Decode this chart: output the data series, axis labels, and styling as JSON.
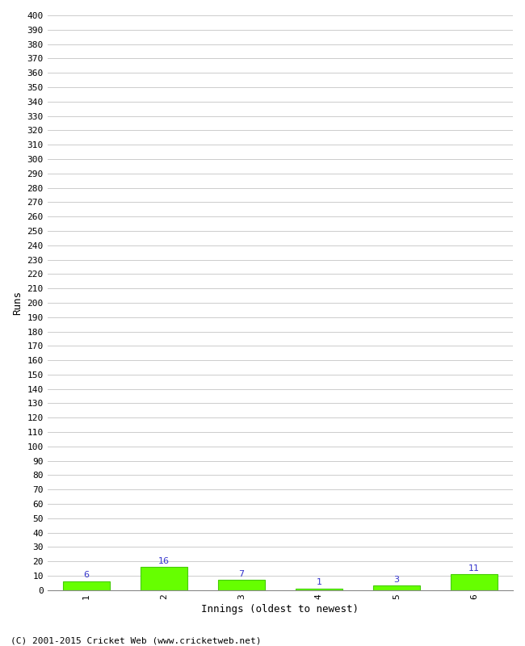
{
  "categories": [
    "1",
    "2",
    "3",
    "4",
    "5",
    "6"
  ],
  "values": [
    6,
    16,
    7,
    1,
    3,
    11
  ],
  "bar_color": "#66ff00",
  "bar_edge_color": "#44cc00",
  "label_color": "#3333cc",
  "xlabel": "Innings (oldest to newest)",
  "ylabel": "Runs",
  "ylim": [
    0,
    400
  ],
  "ytick_step": 10,
  "background_color": "#ffffff",
  "grid_color": "#cccccc",
  "footer_text": "(C) 2001-2015 Cricket Web (www.cricketweb.net)",
  "label_fontsize": 8,
  "axis_label_fontsize": 9,
  "tick_fontsize": 8,
  "footer_fontsize": 8
}
